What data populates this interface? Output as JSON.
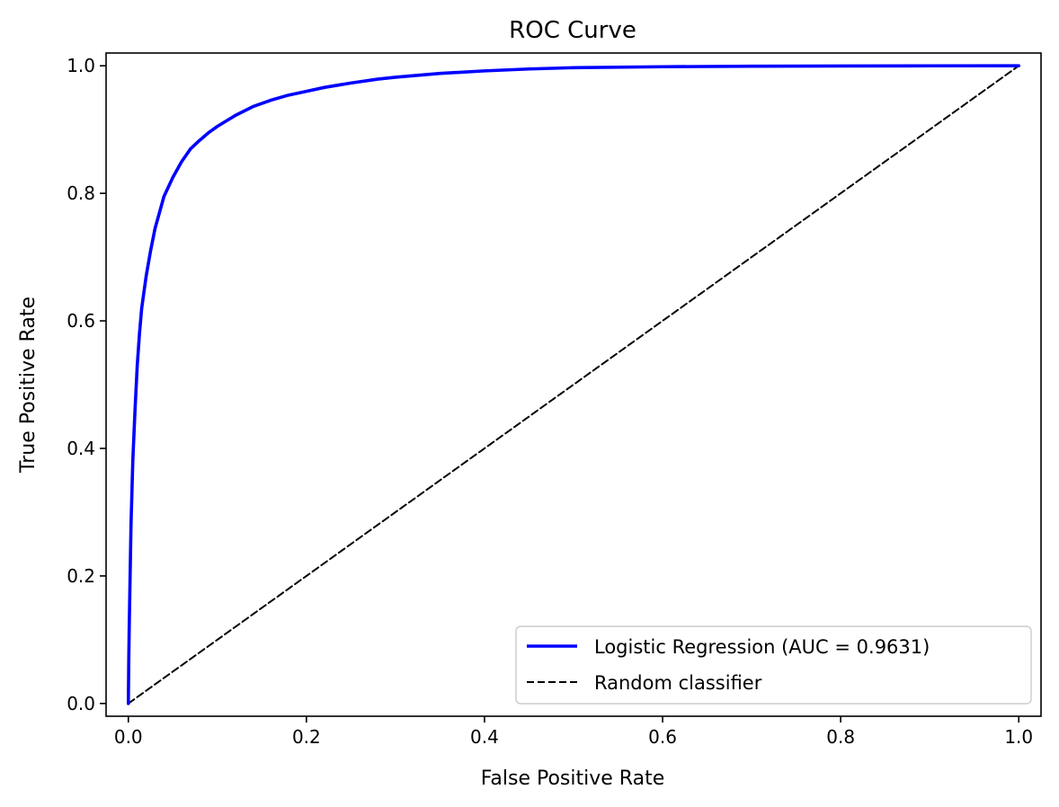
{
  "chart_data": {
    "type": "line",
    "title": "ROC Curve",
    "xlabel": "False Positive Rate",
    "ylabel": "True Positive Rate",
    "xlim": [
      -0.025,
      1.025
    ],
    "ylim": [
      -0.02,
      1.02
    ],
    "xticks": [
      0.0,
      0.2,
      0.4,
      0.6,
      0.8,
      1.0
    ],
    "yticks": [
      0.0,
      0.2,
      0.4,
      0.6,
      0.8,
      1.0
    ],
    "xtick_labels": [
      "0.0",
      "0.2",
      "0.4",
      "0.6",
      "0.8",
      "1.0"
    ],
    "ytick_labels": [
      "0.0",
      "0.2",
      "0.4",
      "0.6",
      "0.8",
      "1.0"
    ],
    "grid": false,
    "legend_position": "lower-right",
    "series": [
      {
        "name": "Logistic Regression (AUC = 0.9631)",
        "color": "#0000ff",
        "style": "solid",
        "x": [
          0.0,
          0.0005,
          0.001,
          0.002,
          0.003,
          0.005,
          0.0075,
          0.01,
          0.0125,
          0.015,
          0.02,
          0.025,
          0.03,
          0.035,
          0.04,
          0.05,
          0.06,
          0.07,
          0.08,
          0.09,
          0.1,
          0.12,
          0.14,
          0.16,
          0.18,
          0.2,
          0.22,
          0.25,
          0.28,
          0.3,
          0.35,
          0.4,
          0.45,
          0.5,
          0.6,
          0.7,
          0.8,
          0.9,
          1.0
        ],
        "y": [
          0.0,
          0.07,
          0.12,
          0.2,
          0.28,
          0.38,
          0.46,
          0.53,
          0.58,
          0.62,
          0.67,
          0.71,
          0.745,
          0.77,
          0.795,
          0.825,
          0.85,
          0.87,
          0.883,
          0.895,
          0.905,
          0.922,
          0.936,
          0.946,
          0.954,
          0.96,
          0.966,
          0.973,
          0.979,
          0.982,
          0.988,
          0.992,
          0.995,
          0.997,
          0.9985,
          0.9993,
          0.9997,
          0.9999,
          1.0
        ]
      },
      {
        "name": "Random classifier",
        "color": "#000000",
        "style": "dashed",
        "x": [
          0.0,
          1.0
        ],
        "y": [
          0.0,
          1.0
        ]
      }
    ]
  }
}
